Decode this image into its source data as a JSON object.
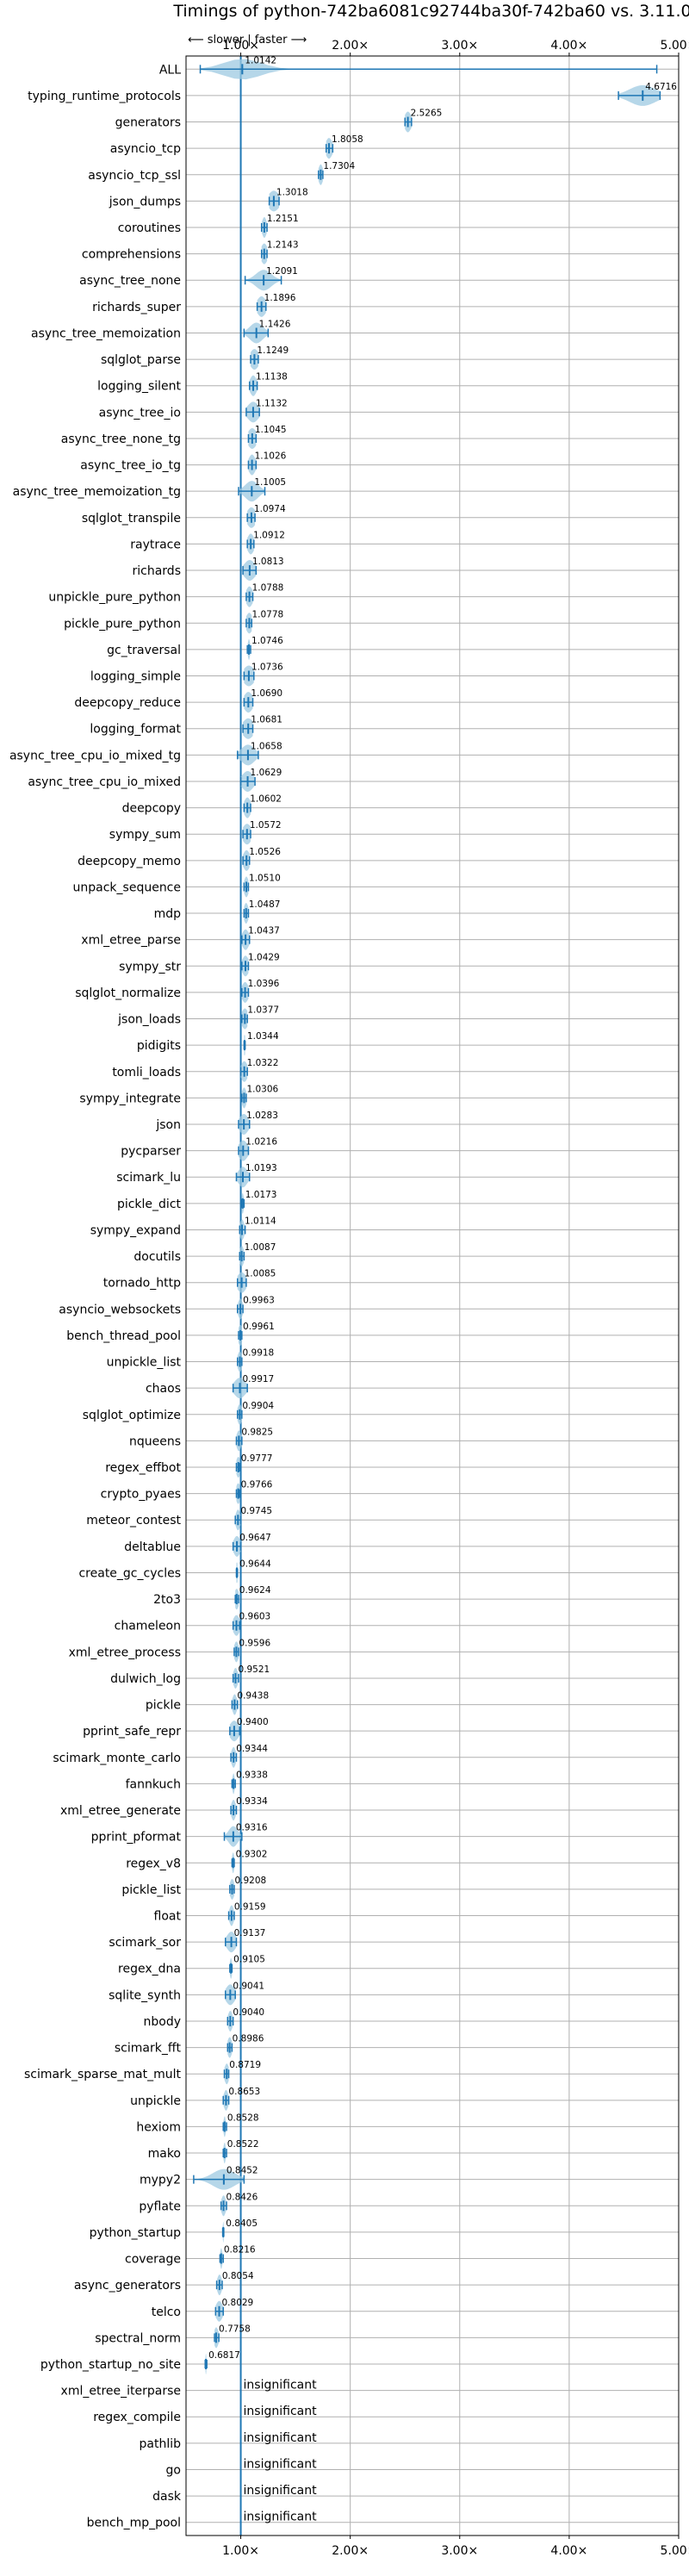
{
  "chart_data": {
    "type": "violin",
    "title": "Timings of python-742ba6081c92744ba30f-742ba60 vs. 3.11.0",
    "annotation": "⟵ slower | faster ⟶",
    "xlim": [
      0.5,
      5.0
    ],
    "xticks": [
      1,
      2,
      3,
      4,
      5
    ],
    "xtick_labels": [
      "1.00×",
      "2.00×",
      "3.00×",
      "4.00×",
      "5.00×"
    ],
    "reference_line": 1.0,
    "grid": true,
    "colors": {
      "body": "#9ecae1",
      "whisker": "#1f77b4",
      "ref": "#1f77b4",
      "median": "#d62728",
      "grid": "#b0b0b0"
    },
    "benchmarks": [
      {
        "name": "ALL",
        "value": 1.0142,
        "label": "1.0142",
        "min": 0.63,
        "max": 4.8,
        "spread": 0.17
      },
      {
        "name": "typing_runtime_protocols",
        "value": 4.6716,
        "label": "4.6716",
        "min": 4.45,
        "max": 4.83,
        "spread": 0.12
      },
      {
        "name": "generators",
        "value": 2.5265,
        "label": "2.5265",
        "min": 2.5,
        "max": 2.56,
        "spread": 0.03
      },
      {
        "name": "asyncio_tcp",
        "value": 1.8058,
        "label": "1.8058",
        "min": 1.78,
        "max": 1.84,
        "spread": 0.03
      },
      {
        "name": "asyncio_tcp_ssl",
        "value": 1.7304,
        "label": "1.7304",
        "min": 1.71,
        "max": 1.75,
        "spread": 0.02
      },
      {
        "name": "json_dumps",
        "value": 1.3018,
        "label": "1.3018",
        "min": 1.26,
        "max": 1.35,
        "spread": 0.05
      },
      {
        "name": "coroutines",
        "value": 1.2151,
        "label": "1.2151",
        "min": 1.19,
        "max": 1.24,
        "spread": 0.02
      },
      {
        "name": "comprehensions",
        "value": 1.2143,
        "label": "1.2143",
        "min": 1.19,
        "max": 1.24,
        "spread": 0.03
      },
      {
        "name": "async_tree_none",
        "value": 1.2091,
        "label": "1.2091",
        "min": 1.04,
        "max": 1.37,
        "spread": 0.07
      },
      {
        "name": "richards_super",
        "value": 1.1896,
        "label": "1.1896",
        "min": 1.15,
        "max": 1.23,
        "spread": 0.04
      },
      {
        "name": "async_tree_memoization",
        "value": 1.1426,
        "label": "1.1426",
        "min": 1.03,
        "max": 1.25,
        "spread": 0.06
      },
      {
        "name": "sqlglot_parse",
        "value": 1.1249,
        "label": "1.1249",
        "min": 1.09,
        "max": 1.16,
        "spread": 0.04
      },
      {
        "name": "logging_silent",
        "value": 1.1138,
        "label": "1.1138",
        "min": 1.08,
        "max": 1.15,
        "spread": 0.03
      },
      {
        "name": "async_tree_io",
        "value": 1.1132,
        "label": "1.1132",
        "min": 1.05,
        "max": 1.17,
        "spread": 0.05
      },
      {
        "name": "async_tree_none_tg",
        "value": 1.1045,
        "label": "1.1045",
        "min": 1.07,
        "max": 1.14,
        "spread": 0.04
      },
      {
        "name": "async_tree_io_tg",
        "value": 1.1026,
        "label": "1.1026",
        "min": 1.07,
        "max": 1.14,
        "spread": 0.03
      },
      {
        "name": "async_tree_memoization_tg",
        "value": 1.1005,
        "label": "1.1005",
        "min": 0.98,
        "max": 1.22,
        "spread": 0.06
      },
      {
        "name": "sqlglot_transpile",
        "value": 1.0974,
        "label": "1.0974",
        "min": 1.06,
        "max": 1.13,
        "spread": 0.04
      },
      {
        "name": "raytrace",
        "value": 1.0912,
        "label": "1.0912",
        "min": 1.06,
        "max": 1.12,
        "spread": 0.03
      },
      {
        "name": "richards",
        "value": 1.0813,
        "label": "1.0813",
        "min": 1.02,
        "max": 1.14,
        "spread": 0.05
      },
      {
        "name": "unpickle_pure_python",
        "value": 1.0788,
        "label": "1.0788",
        "min": 1.05,
        "max": 1.11,
        "spread": 0.03
      },
      {
        "name": "pickle_pure_python",
        "value": 1.0778,
        "label": "1.0778",
        "min": 1.05,
        "max": 1.1,
        "spread": 0.03
      },
      {
        "name": "gc_traversal",
        "value": 1.0746,
        "label": "1.0746",
        "min": 1.06,
        "max": 1.09,
        "spread": 0.01
      },
      {
        "name": "logging_simple",
        "value": 1.0736,
        "label": "1.0736",
        "min": 1.03,
        "max": 1.12,
        "spread": 0.05
      },
      {
        "name": "deepcopy_reduce",
        "value": 1.069,
        "label": "1.0690",
        "min": 1.03,
        "max": 1.11,
        "spread": 0.04
      },
      {
        "name": "logging_format",
        "value": 1.0681,
        "label": "1.0681",
        "min": 1.02,
        "max": 1.11,
        "spread": 0.05
      },
      {
        "name": "async_tree_cpu_io_mixed_tg",
        "value": 1.0658,
        "label": "1.0658",
        "min": 0.97,
        "max": 1.16,
        "spread": 0.06
      },
      {
        "name": "async_tree_cpu_io_mixed",
        "value": 1.0629,
        "label": "1.0629",
        "min": 1.0,
        "max": 1.13,
        "spread": 0.05
      },
      {
        "name": "deepcopy",
        "value": 1.0602,
        "label": "1.0602",
        "min": 1.03,
        "max": 1.09,
        "spread": 0.03
      },
      {
        "name": "sympy_sum",
        "value": 1.0572,
        "label": "1.0572",
        "min": 1.02,
        "max": 1.09,
        "spread": 0.04
      },
      {
        "name": "deepcopy_memo",
        "value": 1.0526,
        "label": "1.0526",
        "min": 1.02,
        "max": 1.08,
        "spread": 0.03
      },
      {
        "name": "unpack_sequence",
        "value": 1.051,
        "label": "1.0510",
        "min": 1.03,
        "max": 1.07,
        "spread": 0.02
      },
      {
        "name": "mdp",
        "value": 1.0487,
        "label": "1.0487",
        "min": 1.03,
        "max": 1.07,
        "spread": 0.02
      },
      {
        "name": "xml_etree_parse",
        "value": 1.0437,
        "label": "1.0437",
        "min": 1.01,
        "max": 1.08,
        "spread": 0.03
      },
      {
        "name": "sympy_str",
        "value": 1.0429,
        "label": "1.0429",
        "min": 1.01,
        "max": 1.07,
        "spread": 0.03
      },
      {
        "name": "sqlglot_normalize",
        "value": 1.0396,
        "label": "1.0396",
        "min": 1.01,
        "max": 1.07,
        "spread": 0.03
      },
      {
        "name": "json_loads",
        "value": 1.0377,
        "label": "1.0377",
        "min": 1.01,
        "max": 1.06,
        "spread": 0.03
      },
      {
        "name": "pidigits",
        "value": 1.0344,
        "label": "1.0344",
        "min": 1.03,
        "max": 1.04,
        "spread": 0.01
      },
      {
        "name": "tomli_loads",
        "value": 1.0322,
        "label": "1.0322",
        "min": 1.0,
        "max": 1.06,
        "spread": 0.03
      },
      {
        "name": "sympy_integrate",
        "value": 1.0306,
        "label": "1.0306",
        "min": 1.01,
        "max": 1.05,
        "spread": 0.02
      },
      {
        "name": "json",
        "value": 1.0283,
        "label": "1.0283",
        "min": 0.98,
        "max": 1.08,
        "spread": 0.04
      },
      {
        "name": "pycparser",
        "value": 1.0216,
        "label": "1.0216",
        "min": 0.98,
        "max": 1.07,
        "spread": 0.04
      },
      {
        "name": "scimark_lu",
        "value": 1.0193,
        "label": "1.0193",
        "min": 0.96,
        "max": 1.08,
        "spread": 0.04
      },
      {
        "name": "pickle_dict",
        "value": 1.0173,
        "label": "1.0173",
        "min": 1.01,
        "max": 1.03,
        "spread": 0.01
      },
      {
        "name": "sympy_expand",
        "value": 1.0114,
        "label": "1.0114",
        "min": 0.99,
        "max": 1.04,
        "spread": 0.02
      },
      {
        "name": "docutils",
        "value": 1.0087,
        "label": "1.0087",
        "min": 0.99,
        "max": 1.03,
        "spread": 0.02
      },
      {
        "name": "tornado_http",
        "value": 1.0085,
        "label": "1.0085",
        "min": 0.97,
        "max": 1.05,
        "spread": 0.04
      },
      {
        "name": "asyncio_websockets",
        "value": 0.9963,
        "label": "0.9963",
        "min": 0.97,
        "max": 1.02,
        "spread": 0.02
      },
      {
        "name": "bench_thread_pool",
        "value": 0.9961,
        "label": "0.9961",
        "min": 0.98,
        "max": 1.01,
        "spread": 0.02
      },
      {
        "name": "unpickle_list",
        "value": 0.9918,
        "label": "0.9918",
        "min": 0.97,
        "max": 1.01,
        "spread": 0.02
      },
      {
        "name": "chaos",
        "value": 0.9917,
        "label": "0.9917",
        "min": 0.93,
        "max": 1.06,
        "spread": 0.05
      },
      {
        "name": "sqlglot_optimize",
        "value": 0.9904,
        "label": "0.9904",
        "min": 0.97,
        "max": 1.01,
        "spread": 0.02
      },
      {
        "name": "nqueens",
        "value": 0.9825,
        "label": "0.9825",
        "min": 0.96,
        "max": 1.01,
        "spread": 0.02
      },
      {
        "name": "regex_effbot",
        "value": 0.9777,
        "label": "0.9777",
        "min": 0.96,
        "max": 0.99,
        "spread": 0.02
      },
      {
        "name": "crypto_pyaes",
        "value": 0.9766,
        "label": "0.9766",
        "min": 0.96,
        "max": 0.99,
        "spread": 0.02
      },
      {
        "name": "meteor_contest",
        "value": 0.9745,
        "label": "0.9745",
        "min": 0.95,
        "max": 1.0,
        "spread": 0.02
      },
      {
        "name": "deltablue",
        "value": 0.9647,
        "label": "0.9647",
        "min": 0.93,
        "max": 1.0,
        "spread": 0.03
      },
      {
        "name": "create_gc_cycles",
        "value": 0.9644,
        "label": "0.9644",
        "min": 0.96,
        "max": 0.97,
        "spread": 0.01
      },
      {
        "name": "2to3",
        "value": 0.9624,
        "label": "0.9624",
        "min": 0.95,
        "max": 0.98,
        "spread": 0.02
      },
      {
        "name": "chameleon",
        "value": 0.9603,
        "label": "0.9603",
        "min": 0.93,
        "max": 0.99,
        "spread": 0.03
      },
      {
        "name": "xml_etree_process",
        "value": 0.9596,
        "label": "0.9596",
        "min": 0.94,
        "max": 0.98,
        "spread": 0.02
      },
      {
        "name": "dulwich_log",
        "value": 0.9521,
        "label": "0.9521",
        "min": 0.93,
        "max": 0.98,
        "spread": 0.02
      },
      {
        "name": "pickle",
        "value": 0.9438,
        "label": "0.9438",
        "min": 0.92,
        "max": 0.97,
        "spread": 0.02
      },
      {
        "name": "pprint_safe_repr",
        "value": 0.94,
        "label": "0.9400",
        "min": 0.9,
        "max": 0.99,
        "spread": 0.04
      },
      {
        "name": "scimark_monte_carlo",
        "value": 0.9344,
        "label": "0.9344",
        "min": 0.91,
        "max": 0.96,
        "spread": 0.02
      },
      {
        "name": "fannkuch",
        "value": 0.9338,
        "label": "0.9338",
        "min": 0.92,
        "max": 0.95,
        "spread": 0.01
      },
      {
        "name": "xml_etree_generate",
        "value": 0.9334,
        "label": "0.9334",
        "min": 0.91,
        "max": 0.96,
        "spread": 0.02
      },
      {
        "name": "pprint_pformat",
        "value": 0.9316,
        "label": "0.9316",
        "min": 0.85,
        "max": 1.01,
        "spread": 0.04
      },
      {
        "name": "regex_v8",
        "value": 0.9302,
        "label": "0.9302",
        "min": 0.92,
        "max": 0.94,
        "spread": 0.01
      },
      {
        "name": "pickle_list",
        "value": 0.9208,
        "label": "0.9208",
        "min": 0.9,
        "max": 0.94,
        "spread": 0.02
      },
      {
        "name": "float",
        "value": 0.9159,
        "label": "0.9159",
        "min": 0.89,
        "max": 0.94,
        "spread": 0.02
      },
      {
        "name": "scimark_sor",
        "value": 0.9137,
        "label": "0.9137",
        "min": 0.86,
        "max": 0.96,
        "spread": 0.04
      },
      {
        "name": "regex_dna",
        "value": 0.9105,
        "label": "0.9105",
        "min": 0.9,
        "max": 0.92,
        "spread": 0.01
      },
      {
        "name": "sqlite_synth",
        "value": 0.9041,
        "label": "0.9041",
        "min": 0.86,
        "max": 0.95,
        "spread": 0.04
      },
      {
        "name": "nbody",
        "value": 0.904,
        "label": "0.9040",
        "min": 0.88,
        "max": 0.93,
        "spread": 0.02
      },
      {
        "name": "scimark_fft",
        "value": 0.8986,
        "label": "0.8986",
        "min": 0.88,
        "max": 0.92,
        "spread": 0.02
      },
      {
        "name": "scimark_sparse_mat_mult",
        "value": 0.8719,
        "label": "0.8719",
        "min": 0.85,
        "max": 0.89,
        "spread": 0.02
      },
      {
        "name": "unpickle",
        "value": 0.8653,
        "label": "0.8653",
        "min": 0.84,
        "max": 0.89,
        "spread": 0.02
      },
      {
        "name": "hexiom",
        "value": 0.8528,
        "label": "0.8528",
        "min": 0.84,
        "max": 0.87,
        "spread": 0.01
      },
      {
        "name": "mako",
        "value": 0.8522,
        "label": "0.8522",
        "min": 0.84,
        "max": 0.87,
        "spread": 0.01
      },
      {
        "name": "mypy2",
        "value": 0.8452,
        "label": "0.8452",
        "min": 0.57,
        "max": 1.03,
        "spread": 0.1
      },
      {
        "name": "pyflate",
        "value": 0.8426,
        "label": "0.8426",
        "min": 0.82,
        "max": 0.87,
        "spread": 0.02
      },
      {
        "name": "python_startup",
        "value": 0.8405,
        "label": "0.8405",
        "min": 0.835,
        "max": 0.845,
        "spread": 0.005
      },
      {
        "name": "coverage",
        "value": 0.8216,
        "label": "0.8216",
        "min": 0.81,
        "max": 0.84,
        "spread": 0.01
      },
      {
        "name": "async_generators",
        "value": 0.8054,
        "label": "0.8054",
        "min": 0.78,
        "max": 0.83,
        "spread": 0.02
      },
      {
        "name": "telco",
        "value": 0.8029,
        "label": "0.8029",
        "min": 0.77,
        "max": 0.84,
        "spread": 0.03
      },
      {
        "name": "spectral_norm",
        "value": 0.7758,
        "label": "0.7758",
        "min": 0.76,
        "max": 0.8,
        "spread": 0.02
      },
      {
        "name": "python_startup_no_site",
        "value": 0.6817,
        "label": "0.6817",
        "min": 0.675,
        "max": 0.69,
        "spread": 0.005
      },
      {
        "name": "xml_etree_iterparse",
        "value": null,
        "label": "insignificant"
      },
      {
        "name": "regex_compile",
        "value": null,
        "label": "insignificant"
      },
      {
        "name": "pathlib",
        "value": null,
        "label": "insignificant"
      },
      {
        "name": "go",
        "value": null,
        "label": "insignificant"
      },
      {
        "name": "dask",
        "value": null,
        "label": "insignificant"
      },
      {
        "name": "bench_mp_pool",
        "value": null,
        "label": "insignificant"
      }
    ]
  }
}
